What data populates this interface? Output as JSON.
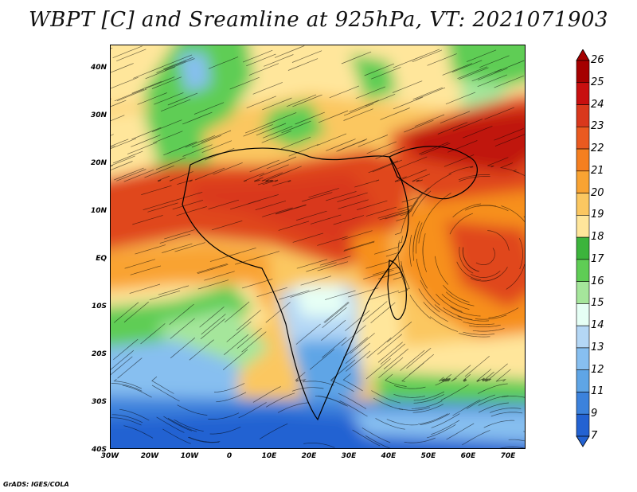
{
  "title": "WBPT [C] and Sreamline at 925hPa, VT: 2021071903",
  "footer": "GrADS: IGES/COLA",
  "lat_labels": [
    "40N",
    "30N",
    "20N",
    "10N",
    "EQ",
    "10S",
    "20S",
    "30S",
    "40S"
  ],
  "lon_labels": [
    "30W",
    "20W",
    "10W",
    "0",
    "10E",
    "20E",
    "30E",
    "40E",
    "50E",
    "60E",
    "70E"
  ],
  "colorbar": {
    "labels": [
      "26",
      "25",
      "24",
      "23",
      "22",
      "21",
      "20",
      "19",
      "18",
      "17",
      "16",
      "15",
      "14",
      "13",
      "12",
      "11",
      "9",
      "7"
    ],
    "colors": [
      "#a50000",
      "#c80f0f",
      "#d9381c",
      "#ea5a20",
      "#f57f1f",
      "#f9a332",
      "#fbc761",
      "#ffe69b",
      "#3cb43c",
      "#5fcd55",
      "#a5e69b",
      "#e6fff5",
      "#b4d7f5",
      "#87bff0",
      "#5fa5e6",
      "#3c82dc",
      "#2362d2"
    ]
  },
  "field_colors": {
    "deep_red": "#c0140f",
    "red": "#e0461b",
    "orange": "#f7901f",
    "light_orange": "#fbc761",
    "yellow": "#ffe69b",
    "green": "#5fcd55",
    "light_green": "#a5e69b",
    "pale": "#e6fff5",
    "light_blue": "#87bff0",
    "blue": "#3c82dc",
    "deep_blue": "#2362d2"
  }
}
